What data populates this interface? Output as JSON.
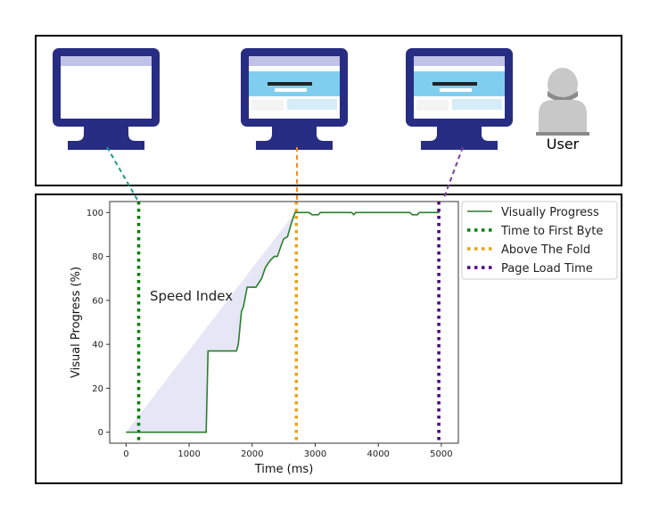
{
  "illustration": {
    "user_label": "User",
    "colors": {
      "monitor": "#272d83",
      "screen_header": "#bfc1e6",
      "screen_hero": "#7fcef0",
      "user": "#c8c8c8"
    },
    "connector_colors": [
      "#1a9a8a",
      "#f08c1a",
      "#7a3c9a"
    ]
  },
  "chart_data": {
    "type": "line",
    "xlabel": "Time (ms)",
    "ylabel": "Visual Progress (%)",
    "xlim": [
      -260,
      5270
    ],
    "ylim": [
      -5,
      105
    ],
    "xticks": [
      0,
      1000,
      2000,
      3000,
      4000,
      5000
    ],
    "yticks": [
      0,
      20,
      40,
      60,
      80,
      100
    ],
    "grid": false,
    "legend_position": "right-outside-top",
    "annotation": "Speed Index",
    "series": [
      {
        "name": "Visually Progress",
        "color": "#2a7f2a",
        "x": [
          0,
          1270,
          1300,
          1750,
          1780,
          1830,
          1860,
          1920,
          2060,
          2150,
          2210,
          2280,
          2350,
          2400,
          2460,
          2500,
          2560,
          2620,
          2680,
          2900,
          2950,
          3050,
          3080,
          3580,
          3610,
          3640,
          4500,
          4540,
          4620,
          4650,
          4970
        ],
        "y": [
          0,
          0,
          37,
          37,
          40,
          55,
          57,
          66,
          66,
          70,
          75,
          78,
          80,
          80,
          85,
          88,
          89,
          95,
          100,
          100,
          99,
          99,
          100,
          100,
          99,
          100,
          100,
          99,
          99,
          100,
          100
        ]
      }
    ],
    "vlines": [
      {
        "name": "Time to First Byte",
        "x": 200,
        "color": "#008000"
      },
      {
        "name": "Above The Fold",
        "x": 2700,
        "color": "#e8a317"
      },
      {
        "name": "Page Load Time",
        "x": 4960,
        "color": "#4b0082"
      }
    ],
    "speed_index_fill": "#e6e6f7"
  }
}
